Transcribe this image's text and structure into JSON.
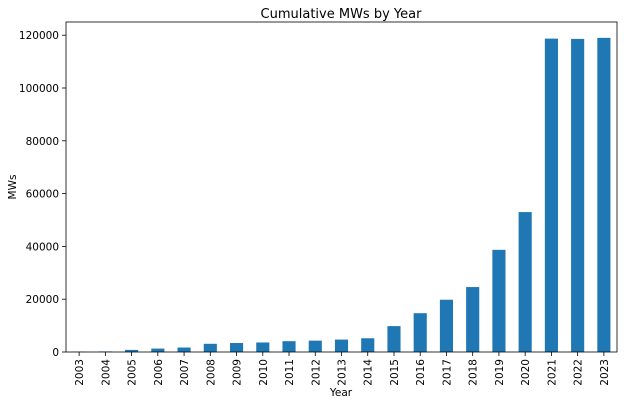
{
  "chart_data": {
    "type": "bar",
    "title": "Cumulative MWs by Year",
    "xlabel": "Year",
    "ylabel": "MWs",
    "categories": [
      "2003",
      "2004",
      "2005",
      "2006",
      "2007",
      "2008",
      "2009",
      "2010",
      "2011",
      "2012",
      "2013",
      "2014",
      "2015",
      "2016",
      "2017",
      "2018",
      "2019",
      "2020",
      "2021",
      "2022",
      "2023"
    ],
    "values": [
      100,
      200,
      800,
      1300,
      1700,
      3100,
      3400,
      3600,
      4100,
      4300,
      4700,
      5200,
      9800,
      14700,
      19800,
      24600,
      38700,
      53000,
      118700,
      118600,
      119000
    ],
    "ylim": [
      0,
      125000
    ],
    "yticks": [
      0,
      20000,
      40000,
      60000,
      80000,
      100000,
      120000
    ],
    "color": "#1f77b4",
    "grid": false,
    "legend": "none"
  }
}
